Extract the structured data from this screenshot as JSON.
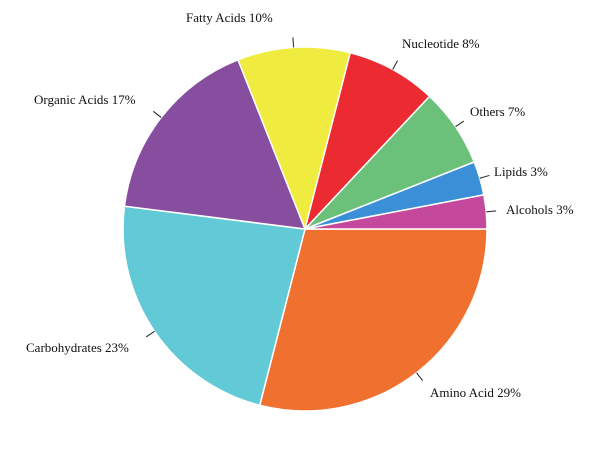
{
  "chart_data": {
    "type": "pie",
    "start_angle_deg": 0,
    "direction": "clockwise",
    "slices": [
      {
        "label": "Amino Acid 29%",
        "value": 29,
        "color": "#f07030"
      },
      {
        "label": "Carbohydrates 23%",
        "value": 23,
        "color": "#62c9d6"
      },
      {
        "label": "Organic Acids 17%",
        "value": 17,
        "color": "#874d9e"
      },
      {
        "label": "Fatty Acids 10%",
        "value": 10,
        "color": "#f0eb3f"
      },
      {
        "label": "Nucleotide 8%",
        "value": 8,
        "color": "#eb2a31"
      },
      {
        "label": "Others 7%",
        "value": 7,
        "color": "#6cc17a"
      },
      {
        "label": "Lipids 3%",
        "value": 3,
        "color": "#3a8fd6"
      },
      {
        "label": "Alcohols 3%",
        "value": 3,
        "color": "#c4499d"
      }
    ]
  }
}
